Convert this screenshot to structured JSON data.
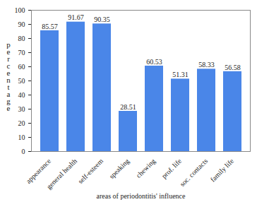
{
  "chart_data": {
    "type": "bar",
    "categories": [
      "appearance",
      "general health",
      "self-esteem",
      "speaking",
      "chewing",
      "prof. life",
      "soc. contacts",
      "family life"
    ],
    "values": [
      85.57,
      91.67,
      90.35,
      28.51,
      60.53,
      51.31,
      58.33,
      56.58
    ],
    "color": "#4a86e8",
    "x_label": "areas of periodontitis' influence",
    "y_label": "percentage",
    "ylim": [
      0,
      100
    ],
    "yticks": [
      0,
      10,
      20,
      30,
      40,
      50,
      60,
      70,
      80,
      90,
      100
    ],
    "grid": false,
    "data_labels": true
  }
}
